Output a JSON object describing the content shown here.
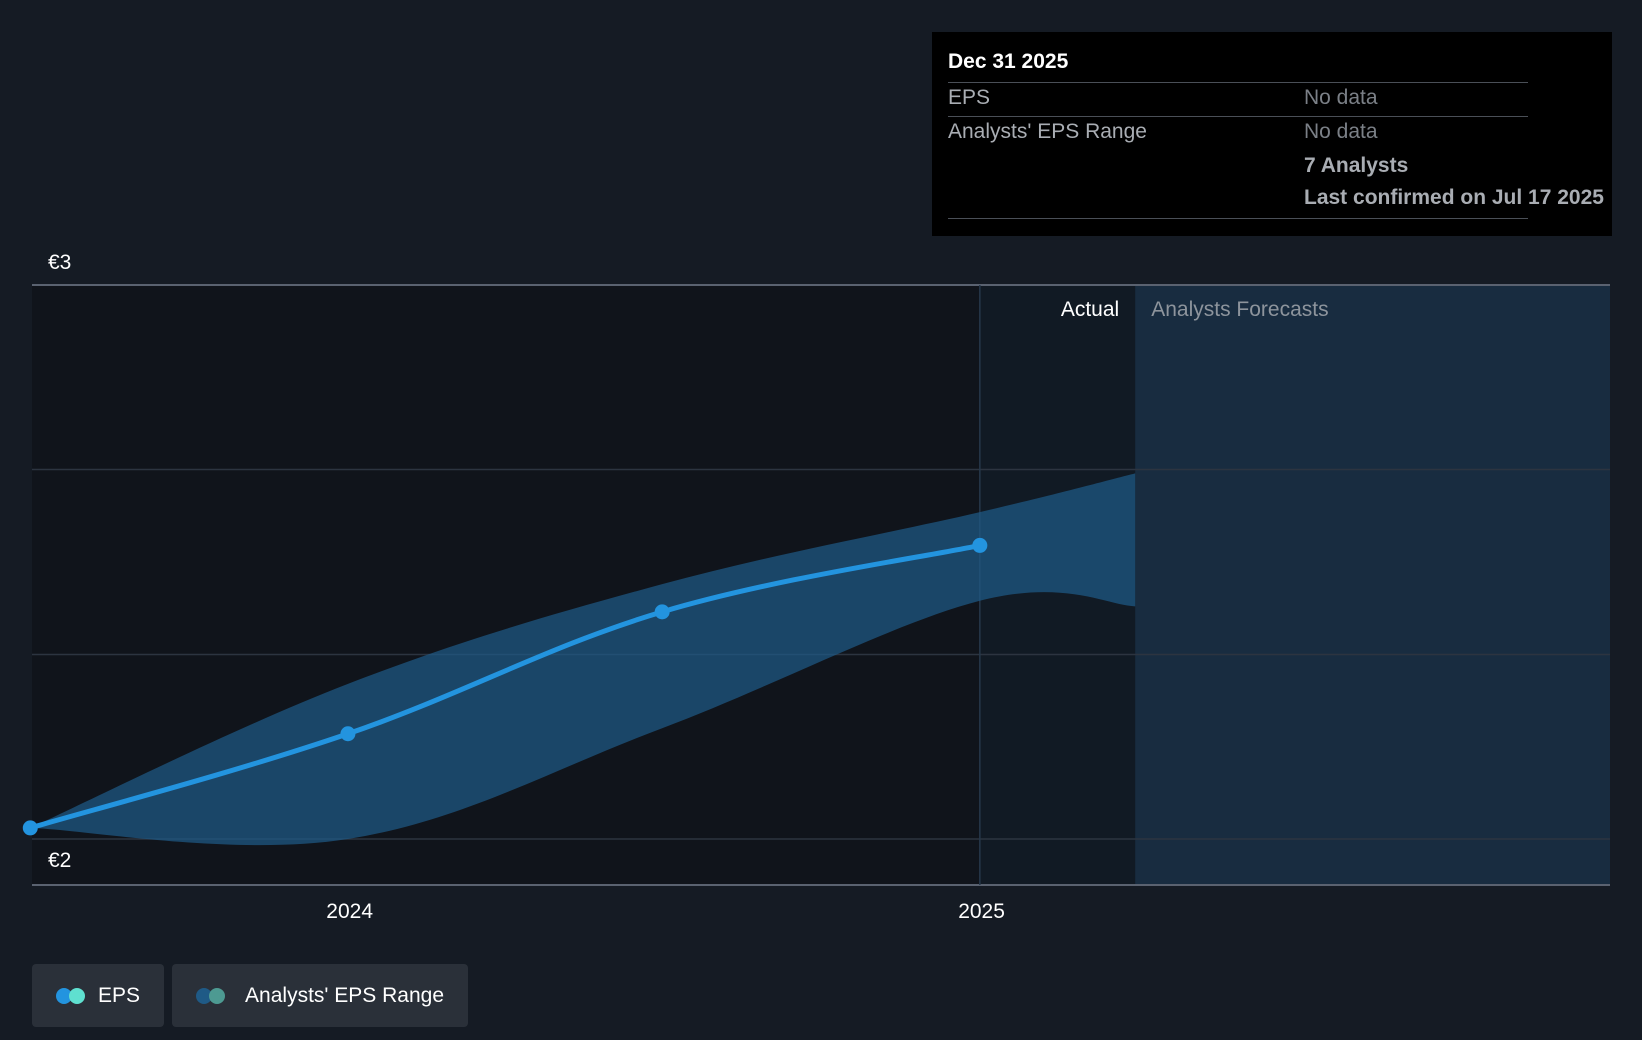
{
  "chart_data": {
    "type": "line",
    "currency_unit": "€",
    "y_axis": {
      "ticks": [
        {
          "value": 3,
          "label": "€3"
        },
        {
          "value": 2,
          "label": "€2"
        }
      ],
      "gridlines": [
        2.0,
        2.333,
        2.667,
        3.0
      ],
      "ylim": [
        1.917,
        3.0
      ]
    },
    "x_axis": {
      "type": "date",
      "range": [
        "2023-07-01",
        "2025-12-31"
      ],
      "ticks": [
        {
          "value": "2024-01-01",
          "label": "2024"
        },
        {
          "value": "2025-01-01",
          "label": "2025"
        }
      ]
    },
    "divider_date": "2024-12-31",
    "forecast_start": "2025-03-31",
    "section_labels": {
      "actual": "Actual",
      "forecast": "Analysts Forecasts"
    },
    "series": [
      {
        "name": "EPS",
        "color": "#2394df",
        "points": [
          {
            "x": "2023-06-30",
            "y": 2.02
          },
          {
            "x": "2023-12-31",
            "y": 2.19
          },
          {
            "x": "2024-06-30",
            "y": 2.41
          },
          {
            "x": "2024-12-31",
            "y": 2.53
          }
        ]
      },
      {
        "name": "Analysts' EPS Range",
        "color": "#1f5a86",
        "upper": [
          {
            "x": "2023-06-30",
            "y": 2.02
          },
          {
            "x": "2023-12-31",
            "y": 2.28
          },
          {
            "x": "2024-06-30",
            "y": 2.46
          },
          {
            "x": "2024-12-31",
            "y": 2.59
          },
          {
            "x": "2025-03-31",
            "y": 2.66
          }
        ],
        "lower": [
          {
            "x": "2023-06-30",
            "y": 2.02
          },
          {
            "x": "2023-12-31",
            "y": 2.0
          },
          {
            "x": "2024-06-30",
            "y": 2.2
          },
          {
            "x": "2024-12-31",
            "y": 2.43
          },
          {
            "x": "2025-03-31",
            "y": 2.42
          }
        ]
      }
    ]
  },
  "tooltip": {
    "date": "Dec 31 2025",
    "rows": [
      {
        "label": "EPS",
        "value": "No data"
      },
      {
        "label": "Analysts' EPS Range",
        "value": "No data"
      }
    ],
    "analysts": "7 Analysts",
    "last_confirmed": "Last confirmed on Jul 17 2025"
  },
  "legend": [
    {
      "label": "EPS",
      "colors": [
        "#2394df",
        "#5fe0d0"
      ]
    },
    {
      "label": "Analysts' EPS Range",
      "colors": [
        "#1f5a86",
        "#4d9a92"
      ]
    }
  ],
  "colors": {
    "background": "#151b24",
    "actual_region": "#10141b",
    "forecast_region": "#182c40",
    "gridline": "#2c3440",
    "axis_line": "#5a6270"
  }
}
